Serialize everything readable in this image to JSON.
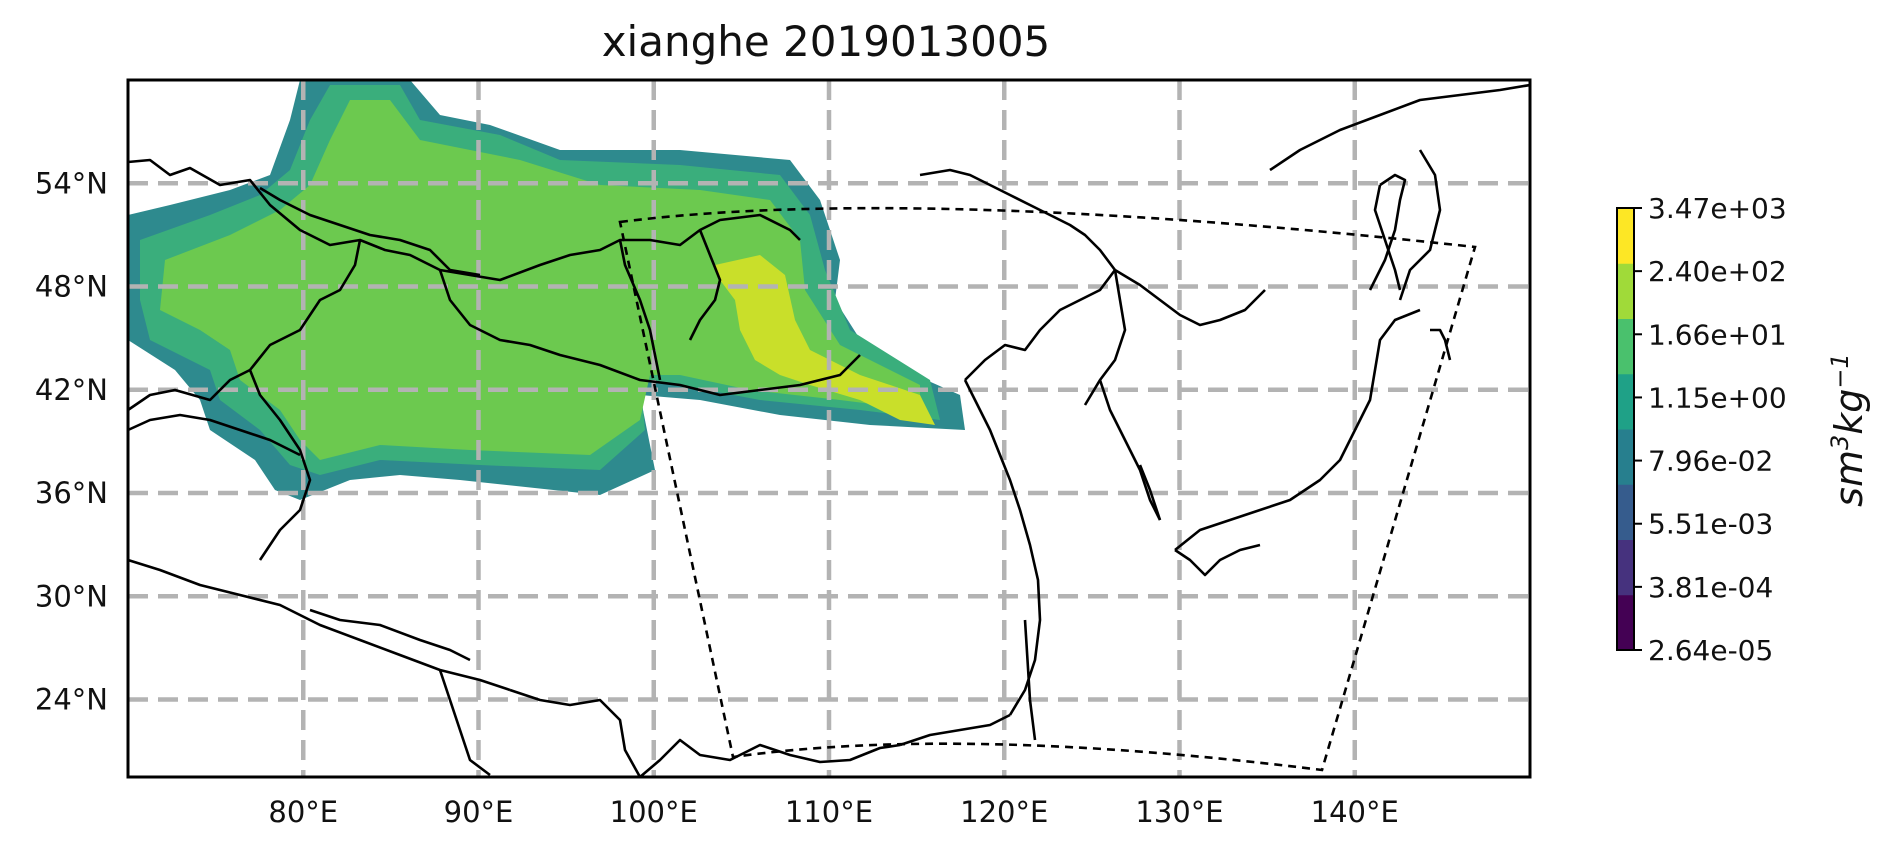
{
  "map": {
    "title": "xianghe 2019013005",
    "lon_labels": [
      "80°E",
      "90°E",
      "100°E",
      "110°E",
      "120°E",
      "130°E",
      "140°E"
    ],
    "lat_labels": [
      "54°N",
      "48°N",
      "42°N",
      "36°N",
      "30°N",
      "24°N"
    ],
    "lon_values": [
      80,
      90,
      100,
      110,
      120,
      130,
      140
    ],
    "lat_values": [
      54,
      48,
      42,
      36,
      30,
      24
    ],
    "extent": {
      "lon_min": 70,
      "lon_max": 150,
      "lat_min": 19.5,
      "lat_max": 60
    },
    "colorbar": {
      "ticks": [
        "3.47e+03",
        "2.40e+02",
        "1.66e+01",
        "1.15e+00",
        "7.96e-02",
        "5.51e-03",
        "3.81e-04",
        "2.64e-05"
      ],
      "colors": [
        "#440154",
        "#46327e",
        "#365c8d",
        "#277f8e",
        "#1fa187",
        "#4ac16d",
        "#a0da39",
        "#fde725"
      ],
      "label_base": "sm",
      "label_exp1": "3",
      "label_mid": "kg",
      "label_exp2": "−1"
    },
    "fill_colors": {
      "outer": "#2e8a8e",
      "mid": "#3aae7c",
      "inner": "#6cc94f",
      "peak": "#c9df2a"
    }
  }
}
